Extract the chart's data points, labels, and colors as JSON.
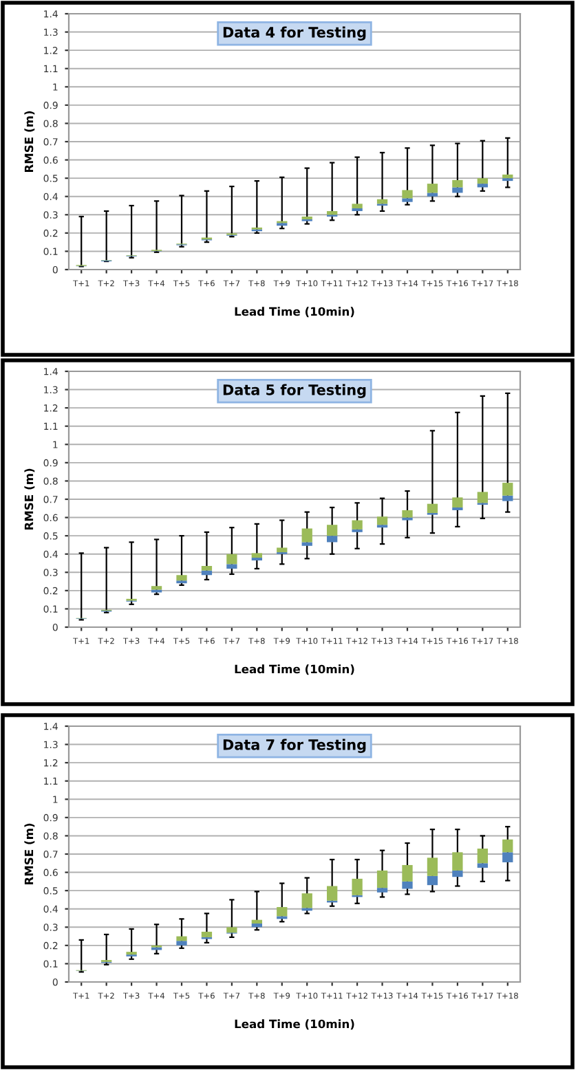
{
  "chart_data": [
    {
      "type": "box",
      "title": "Data 4 for Testing",
      "xlabel": "Lead Time (10min)",
      "ylabel": "RMSE (m)",
      "categories": [
        "T+1",
        "T+2",
        "T+3",
        "T+4",
        "T+5",
        "T+6",
        "T+7",
        "T+8",
        "T+9",
        "T+10",
        "T+11",
        "T+12",
        "T+13",
        "T+14",
        "T+15",
        "T+16",
        "T+17",
        "T+18"
      ],
      "color": "#9bbb59",
      "colors": [
        "#4f81bd",
        "#4f81bd",
        "#4f81bd",
        "#4f81bd",
        "#4f81bd",
        "#4f81bd",
        "#4f81bd",
        "#4f81bd",
        "#4f81bd",
        "#4f81bd",
        "#4f81bd",
        "#4f81bd",
        "#4f81bd",
        "#4f81bd",
        "#4f81bd",
        "#4f81bd",
        "#4f81bd",
        "#4f81bd"
      ],
      "ylim": [
        0,
        1.4
      ],
      "yticks": [
        0,
        0.1,
        0.2,
        0.3,
        0.4,
        0.5,
        0.6,
        0.7,
        0.8,
        0.9,
        1,
        1.1,
        1.2,
        1.3,
        1.4
      ],
      "grid": "y",
      "legend": false,
      "boxes": [
        {
          "low": 0.017,
          "q1": 0.018,
          "median": 0.02,
          "q3": 0.025,
          "high": 0.29
        },
        {
          "low": 0.045,
          "q1": 0.045,
          "median": 0.05,
          "q3": 0.052,
          "high": 0.32
        },
        {
          "low": 0.065,
          "q1": 0.072,
          "median": 0.075,
          "q3": 0.078,
          "high": 0.35
        },
        {
          "low": 0.095,
          "q1": 0.1,
          "median": 0.102,
          "q3": 0.108,
          "high": 0.375
        },
        {
          "low": 0.125,
          "q1": 0.133,
          "median": 0.138,
          "q3": 0.142,
          "high": 0.405
        },
        {
          "low": 0.15,
          "q1": 0.16,
          "median": 0.165,
          "q3": 0.175,
          "high": 0.43
        },
        {
          "low": 0.18,
          "q1": 0.185,
          "median": 0.19,
          "q3": 0.198,
          "high": 0.455
        },
        {
          "low": 0.2,
          "q1": 0.21,
          "median": 0.22,
          "q3": 0.23,
          "high": 0.485
        },
        {
          "low": 0.225,
          "q1": 0.24,
          "median": 0.255,
          "q3": 0.265,
          "high": 0.505
        },
        {
          "low": 0.25,
          "q1": 0.265,
          "median": 0.275,
          "q3": 0.29,
          "high": 0.555
        },
        {
          "low": 0.27,
          "q1": 0.29,
          "median": 0.3,
          "q3": 0.32,
          "high": 0.585
        },
        {
          "low": 0.3,
          "q1": 0.32,
          "median": 0.335,
          "q3": 0.36,
          "high": 0.615
        },
        {
          "low": 0.32,
          "q1": 0.35,
          "median": 0.36,
          "q3": 0.385,
          "high": 0.64
        },
        {
          "low": 0.355,
          "q1": 0.37,
          "median": 0.39,
          "q3": 0.435,
          "high": 0.665
        },
        {
          "low": 0.375,
          "q1": 0.4,
          "median": 0.42,
          "q3": 0.47,
          "high": 0.68
        },
        {
          "low": 0.4,
          "q1": 0.42,
          "median": 0.45,
          "q3": 0.49,
          "high": 0.69
        },
        {
          "low": 0.43,
          "q1": 0.45,
          "median": 0.47,
          "q3": 0.5,
          "high": 0.705
        },
        {
          "low": 0.45,
          "q1": 0.485,
          "median": 0.5,
          "q3": 0.52,
          "high": 0.72
        }
      ]
    },
    {
      "type": "box",
      "title": "Data 5 for Testing",
      "xlabel": "Lead Time (10min)",
      "ylabel": "RMSE (m)",
      "categories": [
        "T+1",
        "T+2",
        "T+3",
        "T+4",
        "T+5",
        "T+6",
        "T+7",
        "T+8",
        "T+9",
        "T+10",
        "T+11",
        "T+12",
        "T+13",
        "T+14",
        "T+15",
        "T+16",
        "T+17",
        "T+18"
      ],
      "color": "#9bbb59",
      "colors": [
        "#4f81bd",
        "#4f81bd",
        "#4f81bd",
        "#4f81bd",
        "#4f81bd",
        "#4f81bd",
        "#4f81bd",
        "#4f81bd",
        "#4f81bd",
        "#4f81bd",
        "#4f81bd",
        "#4f81bd",
        "#4f81bd",
        "#4f81bd",
        "#4f81bd",
        "#4f81bd",
        "#4f81bd",
        "#4f81bd"
      ],
      "ylim": [
        0,
        1.4
      ],
      "yticks": [
        0,
        0.1,
        0.2,
        0.3,
        0.4,
        0.5,
        0.6,
        0.7,
        0.8,
        0.9,
        1,
        1.1,
        1.2,
        1.3,
        1.4
      ],
      "grid": "y",
      "legend": false,
      "boxes": [
        {
          "low": 0.04,
          "q1": 0.045,
          "median": 0.048,
          "q3": 0.05,
          "high": 0.405
        },
        {
          "low": 0.08,
          "q1": 0.085,
          "median": 0.09,
          "q3": 0.095,
          "high": 0.435
        },
        {
          "low": 0.125,
          "q1": 0.14,
          "median": 0.145,
          "q3": 0.155,
          "high": 0.465
        },
        {
          "low": 0.18,
          "q1": 0.19,
          "median": 0.205,
          "q3": 0.225,
          "high": 0.48
        },
        {
          "low": 0.23,
          "q1": 0.24,
          "median": 0.255,
          "q3": 0.285,
          "high": 0.5
        },
        {
          "low": 0.26,
          "q1": 0.285,
          "median": 0.31,
          "q3": 0.335,
          "high": 0.52
        },
        {
          "low": 0.29,
          "q1": 0.32,
          "median": 0.345,
          "q3": 0.4,
          "high": 0.545
        },
        {
          "low": 0.32,
          "q1": 0.365,
          "median": 0.38,
          "q3": 0.405,
          "high": 0.565
        },
        {
          "low": 0.345,
          "q1": 0.4,
          "median": 0.41,
          "q3": 0.435,
          "high": 0.585
        },
        {
          "low": 0.375,
          "q1": 0.445,
          "median": 0.465,
          "q3": 0.54,
          "high": 0.63
        },
        {
          "low": 0.4,
          "q1": 0.465,
          "median": 0.5,
          "q3": 0.56,
          "high": 0.655
        },
        {
          "low": 0.43,
          "q1": 0.52,
          "median": 0.535,
          "q3": 0.585,
          "high": 0.68
        },
        {
          "low": 0.455,
          "q1": 0.545,
          "median": 0.56,
          "q3": 0.605,
          "high": 0.705
        },
        {
          "low": 0.49,
          "q1": 0.585,
          "median": 0.6,
          "q3": 0.64,
          "high": 0.745
        },
        {
          "low": 0.515,
          "q1": 0.615,
          "median": 0.625,
          "q3": 0.675,
          "high": 1.075
        },
        {
          "low": 0.55,
          "q1": 0.64,
          "median": 0.655,
          "q3": 0.71,
          "high": 1.175
        },
        {
          "low": 0.595,
          "q1": 0.67,
          "median": 0.68,
          "q3": 0.74,
          "high": 1.265
        },
        {
          "low": 0.63,
          "q1": 0.69,
          "median": 0.72,
          "q3": 0.79,
          "high": 1.28
        }
      ]
    },
    {
      "type": "box",
      "title": "Data 7 for Testing",
      "xlabel": "Lead Time (10min)",
      "ylabel": "RMSE (m)",
      "categories": [
        "T+1",
        "T+2",
        "T+3",
        "T+4",
        "T+5",
        "T+6",
        "T+7",
        "T+8",
        "T+9",
        "T+10",
        "T+11",
        "T+12",
        "T+13",
        "T+14",
        "T+15",
        "T+16",
        "T+17",
        "T+18"
      ],
      "color": "#9bbb59",
      "colors": [
        "#4f81bd",
        "#4f81bd",
        "#4f81bd",
        "#4f81bd",
        "#4f81bd",
        "#4f81bd",
        "#4f81bd",
        "#4f81bd",
        "#4f81bd",
        "#4f81bd",
        "#4f81bd",
        "#4f81bd",
        "#4f81bd",
        "#4f81bd",
        "#4f81bd",
        "#4f81bd",
        "#4f81bd",
        "#4f81bd"
      ],
      "ylim": [
        0,
        1.4
      ],
      "yticks": [
        0,
        0.1,
        0.2,
        0.3,
        0.4,
        0.5,
        0.6,
        0.7,
        0.8,
        0.9,
        1,
        1.1,
        1.2,
        1.3,
        1.4
      ],
      "grid": "y",
      "legend": false,
      "boxes": [
        {
          "low": 0.055,
          "q1": 0.06,
          "median": 0.062,
          "q3": 0.065,
          "high": 0.23
        },
        {
          "low": 0.095,
          "q1": 0.105,
          "median": 0.11,
          "q3": 0.12,
          "high": 0.26
        },
        {
          "low": 0.125,
          "q1": 0.14,
          "median": 0.15,
          "q3": 0.165,
          "high": 0.29
        },
        {
          "low": 0.155,
          "q1": 0.175,
          "median": 0.19,
          "q3": 0.2,
          "high": 0.315
        },
        {
          "low": 0.185,
          "q1": 0.2,
          "median": 0.225,
          "q3": 0.25,
          "high": 0.345
        },
        {
          "low": 0.215,
          "q1": 0.235,
          "median": 0.245,
          "q3": 0.275,
          "high": 0.375
        },
        {
          "low": 0.245,
          "q1": 0.265,
          "median": 0.27,
          "q3": 0.3,
          "high": 0.45
        },
        {
          "low": 0.285,
          "q1": 0.3,
          "median": 0.32,
          "q3": 0.34,
          "high": 0.495
        },
        {
          "low": 0.33,
          "q1": 0.345,
          "median": 0.36,
          "q3": 0.41,
          "high": 0.54
        },
        {
          "low": 0.375,
          "q1": 0.39,
          "median": 0.405,
          "q3": 0.485,
          "high": 0.57
        },
        {
          "low": 0.415,
          "q1": 0.435,
          "median": 0.445,
          "q3": 0.525,
          "high": 0.67
        },
        {
          "low": 0.43,
          "q1": 0.465,
          "median": 0.475,
          "q3": 0.565,
          "high": 0.67
        },
        {
          "low": 0.465,
          "q1": 0.49,
          "median": 0.515,
          "q3": 0.61,
          "high": 0.72
        },
        {
          "low": 0.48,
          "q1": 0.51,
          "median": 0.55,
          "q3": 0.64,
          "high": 0.76
        },
        {
          "low": 0.495,
          "q1": 0.53,
          "median": 0.58,
          "q3": 0.68,
          "high": 0.835
        },
        {
          "low": 0.525,
          "q1": 0.575,
          "median": 0.61,
          "q3": 0.71,
          "high": 0.835
        },
        {
          "low": 0.55,
          "q1": 0.625,
          "median": 0.65,
          "q3": 0.73,
          "high": 0.8
        },
        {
          "low": 0.555,
          "q1": 0.655,
          "median": 0.71,
          "q3": 0.78,
          "high": 0.85
        }
      ]
    }
  ]
}
